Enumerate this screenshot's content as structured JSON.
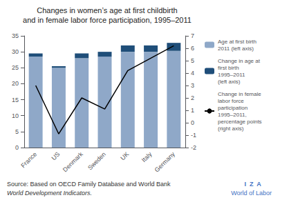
{
  "chart_data": {
    "type": "bar",
    "title": "Changes in women’s age at first childbirth",
    "subtitle": "and in female labor force participation, 1995–2011",
    "categories": [
      "France",
      "US",
      "Denmark",
      "Sweden",
      "UK",
      "Italy",
      "Germany"
    ],
    "stacked": true,
    "grid": false,
    "legend": "right",
    "series": [
      {
        "name": "Age at first birth\n2011 (left axis)",
        "type": "bar",
        "color": "#8FA8C8",
        "values": [
          28.5,
          25.0,
          28.0,
          28.5,
          30.0,
          30.0,
          30.3
        ]
      },
      {
        "name": "Change in age at\nfirst birth\n1995–2011\n(left axis)",
        "type": "bar",
        "color": "#1F4E79",
        "values": [
          1.0,
          0.5,
          1.5,
          1.5,
          2.0,
          2.0,
          2.5
        ]
      },
      {
        "name": "Change in female\nlabor force\nparticipation\n1995–2011,\npercentage points\n(right axis)",
        "type": "line",
        "axis": "y2",
        "color": "#000000",
        "values": [
          3.0,
          -0.9,
          2.0,
          1.1,
          4.2,
          5.2,
          6.2
        ]
      }
    ],
    "ylim": [
      0,
      35
    ],
    "yticks": [
      0,
      5,
      10,
      15,
      20,
      25,
      30,
      35
    ],
    "y2lim": [
      -2,
      7
    ],
    "y2ticks": [
      -2,
      -1,
      0,
      1,
      2,
      3,
      4,
      5,
      6,
      7
    ],
    "annotations": [
      {
        "text": "Source: Based on OECD Family Database and World Bank"
      },
      {
        "text": "World Development Indicators."
      },
      {
        "text": "I  Z  A",
        "color": "#4472C4"
      },
      {
        "text": "World of Labor",
        "color": "#4472C4"
      }
    ]
  }
}
